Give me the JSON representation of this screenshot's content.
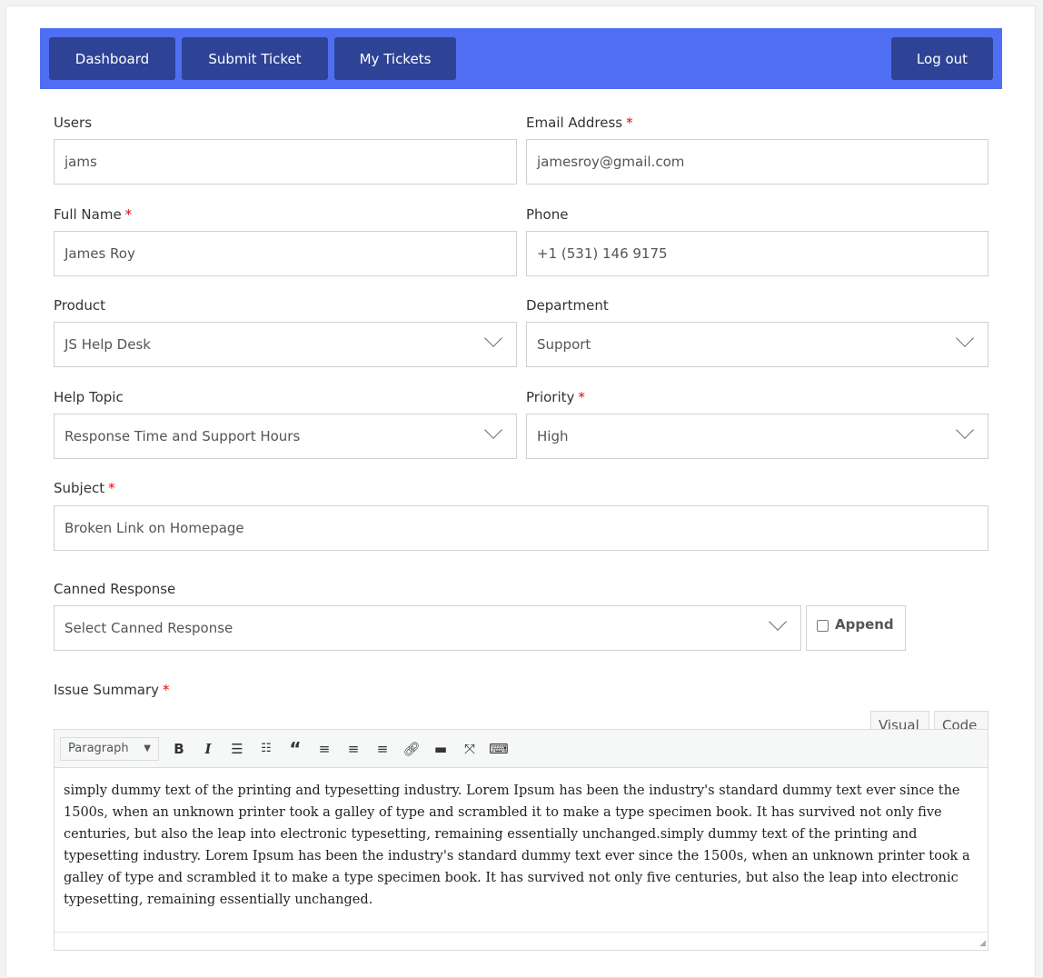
{
  "nav": {
    "dashboard": "Dashboard",
    "submit_ticket": "Submit Ticket",
    "my_tickets": "My Tickets",
    "logout": "Log out"
  },
  "colors": {
    "nav_bg": "#4f6ef2",
    "nav_button": "#2e4396",
    "required": "#ee0000"
  },
  "form": {
    "users": {
      "label": "Users",
      "value": "jams"
    },
    "email": {
      "label": "Email Address",
      "value": "jamesroy@gmail.com",
      "required": "*"
    },
    "full_name": {
      "label": "Full Name",
      "value": "James Roy",
      "required": "*"
    },
    "phone": {
      "label": "Phone",
      "value": "+1 (531) 146 9175"
    },
    "product": {
      "label": "Product",
      "value": "JS Help Desk"
    },
    "department": {
      "label": "Department",
      "value": "Support"
    },
    "help_topic": {
      "label": "Help Topic",
      "value": "Response Time and Support Hours"
    },
    "priority": {
      "label": "Priority",
      "value": "High",
      "required": "*"
    },
    "subject": {
      "label": "Subject",
      "value": "Broken Link on Homepage",
      "required": "*"
    },
    "canned": {
      "label": "Canned Response",
      "value": "Select Canned Response",
      "append": "Append",
      "append_checked": false
    },
    "issue": {
      "label": "Issue Summary",
      "required": "*",
      "tab_visual": "Visual",
      "tab_code": "Code",
      "format": "Paragraph",
      "content": "simply dummy text of the printing and typesetting industry. Lorem Ipsum has been the industry's standard dummy text ever since the 1500s, when an unknown printer took a galley of type and scrambled it to make a type specimen book. It has survived not only five centuries, but also the leap into electronic typesetting, remaining essentially unchanged.simply dummy text of the printing and typesetting industry. Lorem Ipsum has been the industry's standard dummy text ever since the 1500s, when an unknown printer took a galley of type and scrambled it to make a type specimen book. It has survived not only five centuries, but also the leap into electronic typesetting, remaining essentially unchanged."
    }
  }
}
